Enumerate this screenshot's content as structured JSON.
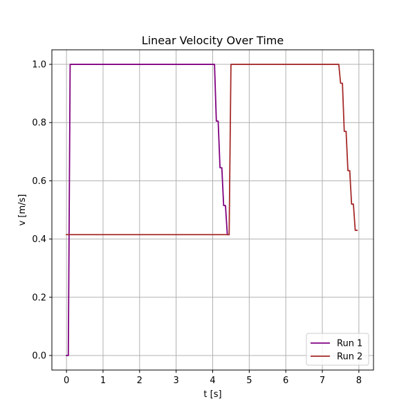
{
  "chart_data": {
    "type": "line",
    "title": "Linear Velocity Over Time",
    "xlabel": "t [s]",
    "ylabel": "v [m/s]",
    "xlim": [
      -0.4,
      8.4
    ],
    "ylim": [
      -0.05,
      1.05
    ],
    "x_ticks": [
      0,
      1,
      2,
      3,
      4,
      5,
      6,
      7,
      8
    ],
    "y_ticks": [
      0.0,
      0.2,
      0.4,
      0.6,
      0.8,
      1.0
    ],
    "x_tick_labels": [
      "0",
      "1",
      "2",
      "3",
      "4",
      "5",
      "6",
      "7",
      "8"
    ],
    "y_tick_labels": [
      "0.0",
      "0.2",
      "0.4",
      "0.6",
      "0.8",
      "1.0"
    ],
    "grid": true,
    "legend_position": "lower-right",
    "series": [
      {
        "name": "Run 1",
        "color": "#800080",
        "x": [
          0.0,
          0.05,
          0.1,
          4.05,
          4.1,
          4.15,
          4.2,
          4.25,
          4.3,
          4.35,
          4.4,
          4.45
        ],
        "y": [
          0.0,
          0.0,
          1.0,
          1.0,
          0.805,
          0.805,
          0.645,
          0.645,
          0.515,
          0.515,
          0.415,
          0.415
        ]
      },
      {
        "name": "Run 2",
        "color": "#a52a2a",
        "x": [
          0.0,
          4.45,
          4.5,
          7.45,
          7.5,
          7.55,
          7.6,
          7.65,
          7.7,
          7.75,
          7.8,
          7.85,
          7.9,
          7.95
        ],
        "y": [
          0.415,
          0.415,
          1.0,
          1.0,
          0.935,
          0.935,
          0.77,
          0.77,
          0.635,
          0.635,
          0.52,
          0.52,
          0.43,
          0.43
        ]
      }
    ]
  }
}
